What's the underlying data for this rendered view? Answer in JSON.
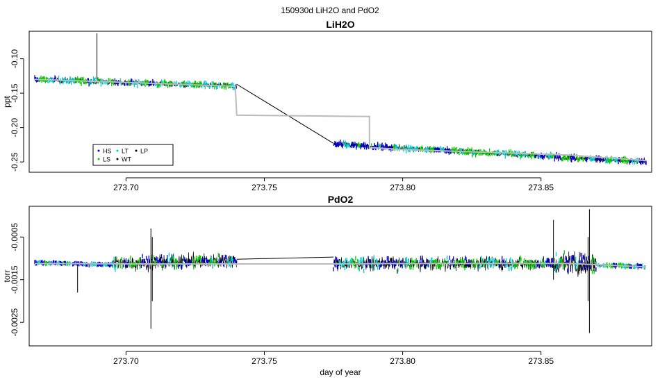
{
  "figure": {
    "title": "150930d   LiH2O and PdO2"
  },
  "chart_data": [
    {
      "type": "scatter",
      "title": "LiH2O",
      "xlabel": "",
      "ylabel": "ppt",
      "xlim": [
        273.665,
        273.89
      ],
      "ylim": [
        -0.265,
        -0.06
      ],
      "xticks": [
        273.7,
        273.75,
        273.8,
        273.85
      ],
      "xtick_labels": [
        "273.70",
        "273.75",
        "273.80",
        "273.85"
      ],
      "yticks": [
        -0.25,
        -0.2,
        -0.15,
        -0.1
      ],
      "ytick_labels": [
        "-0.25",
        "-0.20",
        "-0.15",
        "-0.10"
      ],
      "grid": false,
      "legend": {
        "placement": "bottom-left",
        "entries": [
          {
            "label": "HS",
            "color": "#0000cc"
          },
          {
            "label": "LS",
            "color": "#00cc00"
          },
          {
            "label": "LT",
            "color": "#00cccc"
          },
          {
            "label": "WT",
            "color": "#000000"
          },
          {
            "label": "LP",
            "color": "#000000"
          }
        ]
      },
      "segments": [
        {
          "x_start": 273.667,
          "x_end": 273.74,
          "y_start": -0.13,
          "y_end": -0.14,
          "noise": 0.006
        },
        {
          "x_start": 273.775,
          "x_end": 273.888,
          "y_start": -0.224,
          "y_end": -0.25,
          "noise": 0.006
        }
      ],
      "spikes": [
        {
          "x": 273.6895,
          "y_min": -0.13,
          "y_max": -0.063
        }
      ],
      "connector": {
        "x": [
          273.74,
          273.775
        ],
        "y": [
          -0.137,
          -0.223
        ]
      },
      "smooth_line": {
        "x": [
          273.667,
          273.69,
          273.7395,
          273.74,
          273.788,
          273.788,
          273.8,
          273.83,
          273.86,
          273.888
        ],
        "y": [
          -0.13,
          -0.133,
          -0.14,
          -0.182,
          -0.184,
          -0.229,
          -0.232,
          -0.236,
          -0.24,
          -0.248
        ]
      }
    },
    {
      "type": "scatter",
      "title": "PdO2",
      "xlabel": "day of year",
      "ylabel": "torr",
      "xlim": [
        273.665,
        273.89
      ],
      "ylim": [
        -0.00305,
        0.00022
      ],
      "xticks": [
        273.7,
        273.75,
        273.8,
        273.85
      ],
      "xtick_labels": [
        "273.70",
        "273.75",
        "273.80",
        "273.85"
      ],
      "yticks": [
        -0.0025,
        -0.0015,
        -0.0005
      ],
      "ytick_labels": [
        "-0.0025",
        "-0.0015",
        "-0.0005"
      ],
      "grid": false,
      "segments": [
        {
          "x_start": 273.667,
          "x_end": 273.695,
          "y_start": -0.0011,
          "y_end": -0.00115,
          "noise": 4e-05
        },
        {
          "x_start": 273.695,
          "x_end": 273.74,
          "y_start": -0.00112,
          "y_end": -0.00105,
          "noise": 0.00025
        },
        {
          "x_start": 273.775,
          "x_end": 273.855,
          "y_start": -0.00112,
          "y_end": -0.00112,
          "noise": 0.00022
        },
        {
          "x_start": 273.855,
          "x_end": 273.87,
          "y_start": -0.00112,
          "y_end": -0.00112,
          "noise": 0.0004
        },
        {
          "x_start": 273.87,
          "x_end": 273.888,
          "y_start": -0.00115,
          "y_end": -0.0012,
          "noise": 5e-05
        }
      ],
      "spikes": [
        {
          "x": 273.6825,
          "y_min": -0.0018,
          "y_max": -0.0011
        },
        {
          "x": 273.709,
          "y_min": -0.00265,
          "y_max": -0.0003
        },
        {
          "x": 273.7095,
          "y_min": -0.002,
          "y_max": -0.0005
        },
        {
          "x": 273.8545,
          "y_min": -0.0015,
          "y_max": -0.0001
        },
        {
          "x": 273.8675,
          "y_min": -0.00275,
          "y_max": 0.00015
        },
        {
          "x": 273.867,
          "y_min": -0.002,
          "y_max": -0.0005
        }
      ],
      "connector": {
        "x": [
          273.74,
          273.775
        ],
        "y": [
          -0.00102,
          -0.00097
        ]
      },
      "smooth_line": {
        "x": [
          273.667,
          273.7,
          273.74,
          273.775,
          273.8,
          273.83,
          273.86,
          273.888
        ],
        "y": [
          -0.00112,
          -0.00113,
          -0.00113,
          -0.00113,
          -0.00112,
          -0.00112,
          -0.00112,
          -0.0012
        ]
      }
    }
  ]
}
